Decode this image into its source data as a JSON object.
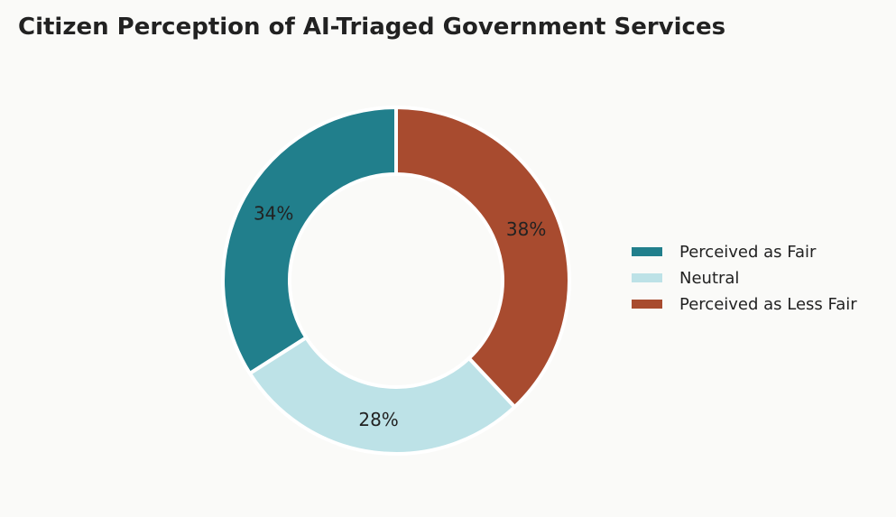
{
  "chart_data": {
    "type": "pie",
    "variant": "donut",
    "title": "Citizen Perception of AI-Triaged Government Services",
    "categories": [
      "Perceived as Fair",
      "Neutral",
      "Perceived as Less Fair"
    ],
    "values": [
      34,
      28,
      38
    ],
    "labels": [
      "34%",
      "28%",
      "38%"
    ],
    "colors": [
      "#217f8c",
      "#bde2e7",
      "#a84b2f"
    ],
    "legend_position": "right",
    "start": "top",
    "direction": "counterclockwise"
  }
}
